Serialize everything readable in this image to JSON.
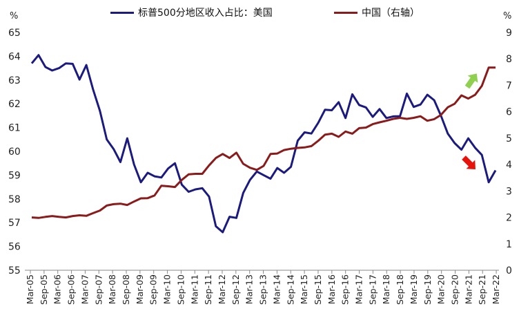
{
  "chart_data": {
    "type": "line",
    "title": "",
    "left_unit": "%",
    "right_unit": "%",
    "y_left": {
      "min": 55,
      "max": 65,
      "ticks": [
        "65",
        "64",
        "63",
        "62",
        "61",
        "60",
        "59",
        "58",
        "57",
        "56",
        "55"
      ]
    },
    "y_right": {
      "min": 0,
      "max": 9,
      "ticks": [
        "9",
        "8",
        "7",
        "6",
        "5",
        "4",
        "3",
        "2",
        "1",
        "0"
      ]
    },
    "x_ticks": [
      "Mar-05",
      "Sep-05",
      "Mar-06",
      "Sep-06",
      "Mar-07",
      "Sep-07",
      "Mar-08",
      "Sep-08",
      "Mar-09",
      "Sep-09",
      "Mar-10",
      "Sep-10",
      "Mar-11",
      "Sep-11",
      "Mar-12",
      "Sep-12",
      "Mar-13",
      "Sep-13",
      "Mar-14",
      "Sep-14",
      "Mar-15",
      "Sep-15",
      "Mar-16",
      "Sep-16",
      "Mar-17",
      "Sep-17",
      "Mar-18",
      "Sep-18",
      "Mar-19",
      "Sep-19",
      "Mar-20",
      "Sep-20",
      "Mar-21",
      "Sep-21",
      "Mar-22"
    ],
    "series": [
      {
        "name": "标普500分地区收入占比：美国",
        "axis": "left",
        "color": "#1a1a80",
        "values": [
          63.7,
          64.05,
          63.55,
          63.4,
          63.5,
          63.7,
          63.68,
          63.02,
          63.63,
          62.6,
          61.7,
          60.5,
          60.1,
          59.55,
          60.55,
          59.45,
          58.7,
          59.1,
          58.95,
          58.9,
          59.28,
          59.5,
          58.6,
          58.3,
          58.4,
          58.45,
          58.1,
          56.85,
          56.6,
          57.25,
          57.2,
          58.25,
          58.8,
          59.15,
          59.0,
          58.85,
          59.3,
          59.1,
          59.35,
          60.45,
          60.8,
          60.75,
          61.2,
          61.75,
          61.73,
          62.07,
          61.4,
          62.4,
          61.95,
          61.85,
          61.45,
          61.78,
          61.4,
          61.47,
          61.48,
          62.43,
          61.87,
          61.97,
          62.38,
          62.15,
          61.5,
          60.75,
          60.35,
          60.07,
          60.55,
          60.15,
          59.85,
          58.7,
          59.2
        ]
      },
      {
        "name": "中国（右轴）",
        "axis": "right",
        "color": "#8b1a1a",
        "values": [
          2.0,
          1.98,
          2.02,
          2.05,
          2.02,
          2.0,
          2.05,
          2.08,
          2.06,
          2.16,
          2.26,
          2.45,
          2.5,
          2.52,
          2.47,
          2.6,
          2.72,
          2.73,
          2.83,
          3.2,
          3.18,
          3.15,
          3.42,
          3.63,
          3.65,
          3.65,
          3.97,
          4.25,
          4.4,
          4.25,
          4.45,
          4.03,
          3.88,
          3.8,
          3.95,
          4.4,
          4.42,
          4.55,
          4.6,
          4.63,
          4.65,
          4.7,
          4.9,
          5.13,
          5.17,
          5.05,
          5.25,
          5.17,
          5.38,
          5.4,
          5.53,
          5.6,
          5.66,
          5.73,
          5.77,
          5.73,
          5.77,
          5.83,
          5.66,
          5.72,
          5.88,
          6.17,
          6.3,
          6.62,
          6.5,
          6.64,
          6.98,
          7.67,
          7.67
        ]
      }
    ],
    "grid": false,
    "legend_position": "top",
    "annotations": [
      {
        "type": "arrow",
        "color": "#8fd14f",
        "direction": "up-right"
      },
      {
        "type": "arrow",
        "color": "#e8120c",
        "direction": "down-right"
      }
    ]
  }
}
